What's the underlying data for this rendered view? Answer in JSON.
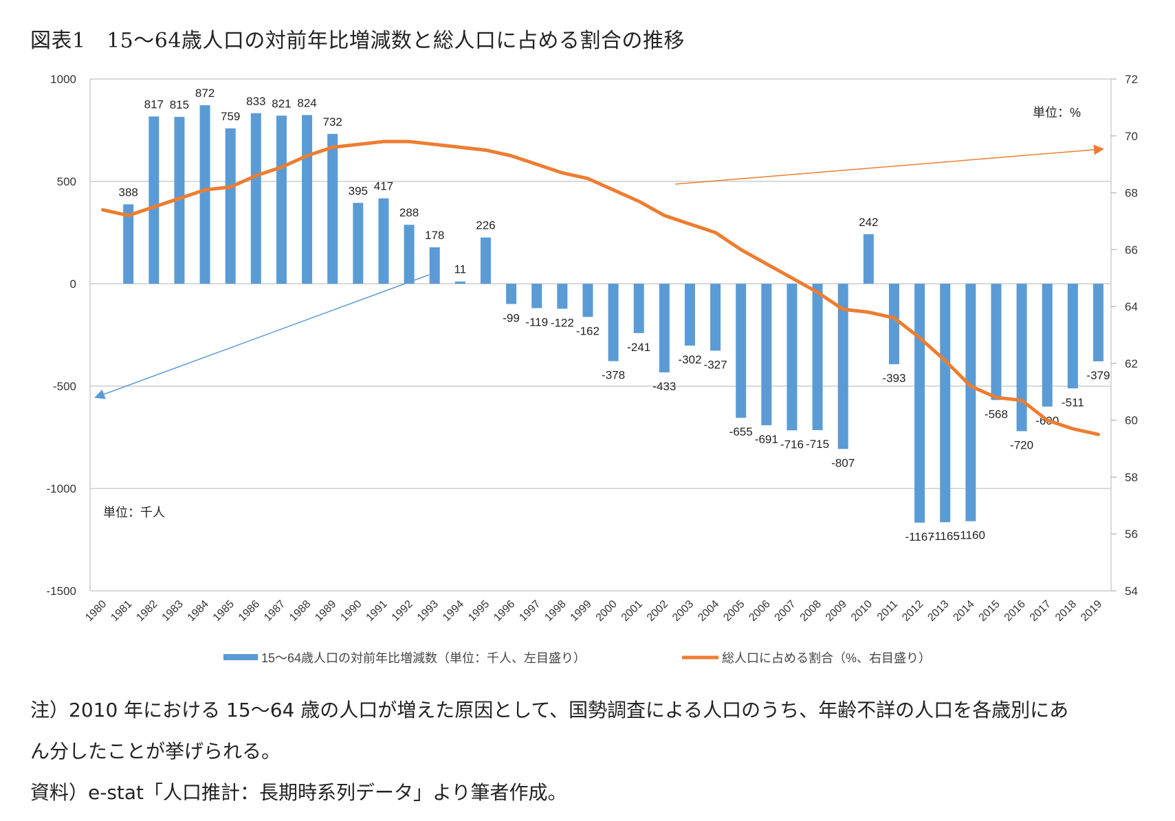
{
  "chart_data": {
    "type": "bar+line",
    "title": "図表1　15～64歳人口の対前年比増減数と総人口に占める割合の推移",
    "categories": [
      "1980",
      "1981",
      "1982",
      "1983",
      "1984",
      "1985",
      "1986",
      "1987",
      "1988",
      "1989",
      "1990",
      "1991",
      "1992",
      "1993",
      "1994",
      "1995",
      "1996",
      "1997",
      "1998",
      "1999",
      "2000",
      "2001",
      "2002",
      "2003",
      "2004",
      "2005",
      "2006",
      "2007",
      "2008",
      "2009",
      "2010",
      "2011",
      "2012",
      "2013",
      "2014",
      "2015",
      "2016",
      "2017",
      "2018",
      "2019"
    ],
    "series": [
      {
        "name": "15～64歳人口の対前年比増減数（単位：千人、左目盛り）",
        "type": "bar",
        "axis": "left",
        "color": "#5b9bd5",
        "values": [
          null,
          388,
          817,
          815,
          872,
          759,
          833,
          821,
          824,
          732,
          395,
          417,
          288,
          178,
          11,
          226,
          -99,
          -119,
          -122,
          -162,
          -378,
          -241,
          -433,
          -302,
          -327,
          -655,
          -691,
          -716,
          -715,
          -807,
          242,
          -393,
          -1167,
          -1165,
          -1160,
          -568,
          -720,
          -600,
          -511,
          -379
        ]
      },
      {
        "name": "総人口に占める割合（%、右目盛り）",
        "type": "line",
        "axis": "right",
        "color": "#ed7d31",
        "values": [
          67.4,
          67.2,
          67.5,
          67.8,
          68.1,
          68.2,
          68.6,
          68.9,
          69.3,
          69.6,
          69.7,
          69.8,
          69.8,
          69.7,
          69.6,
          69.5,
          69.3,
          69.0,
          68.7,
          68.5,
          68.1,
          67.7,
          67.2,
          66.9,
          66.6,
          66.0,
          65.5,
          65.0,
          64.5,
          63.9,
          63.8,
          63.6,
          62.9,
          62.1,
          61.2,
          60.8,
          60.7,
          60.0,
          59.7,
          59.5
        ]
      }
    ],
    "left_axis": {
      "range": [
        -1500,
        1000
      ],
      "ticks": [
        "1000",
        "500",
        "0",
        "-500",
        "-1000",
        "-1500"
      ],
      "unit_label": "単位：千人"
    },
    "right_axis": {
      "range": [
        54,
        72
      ],
      "ticks": [
        "72",
        "70",
        "68",
        "66",
        "64",
        "62",
        "60",
        "58",
        "56",
        "54"
      ],
      "unit_label": "単位：%"
    },
    "grid": "horizontal",
    "legend_position": "bottom",
    "annotations": [
      "arrow from bars to left axis",
      "arrow from line to right axis"
    ]
  },
  "notes": {
    "line1": "注）2010 年における 15～64 歳の人口が増えた原因として、国勢調査による人口のうち、年齢不詳の人口を各歳別にあ",
    "line2": "ん分したことが挙げられる。",
    "line3": "資料）e-stat「人口推計：長期時系列データ」より筆者作成。"
  }
}
